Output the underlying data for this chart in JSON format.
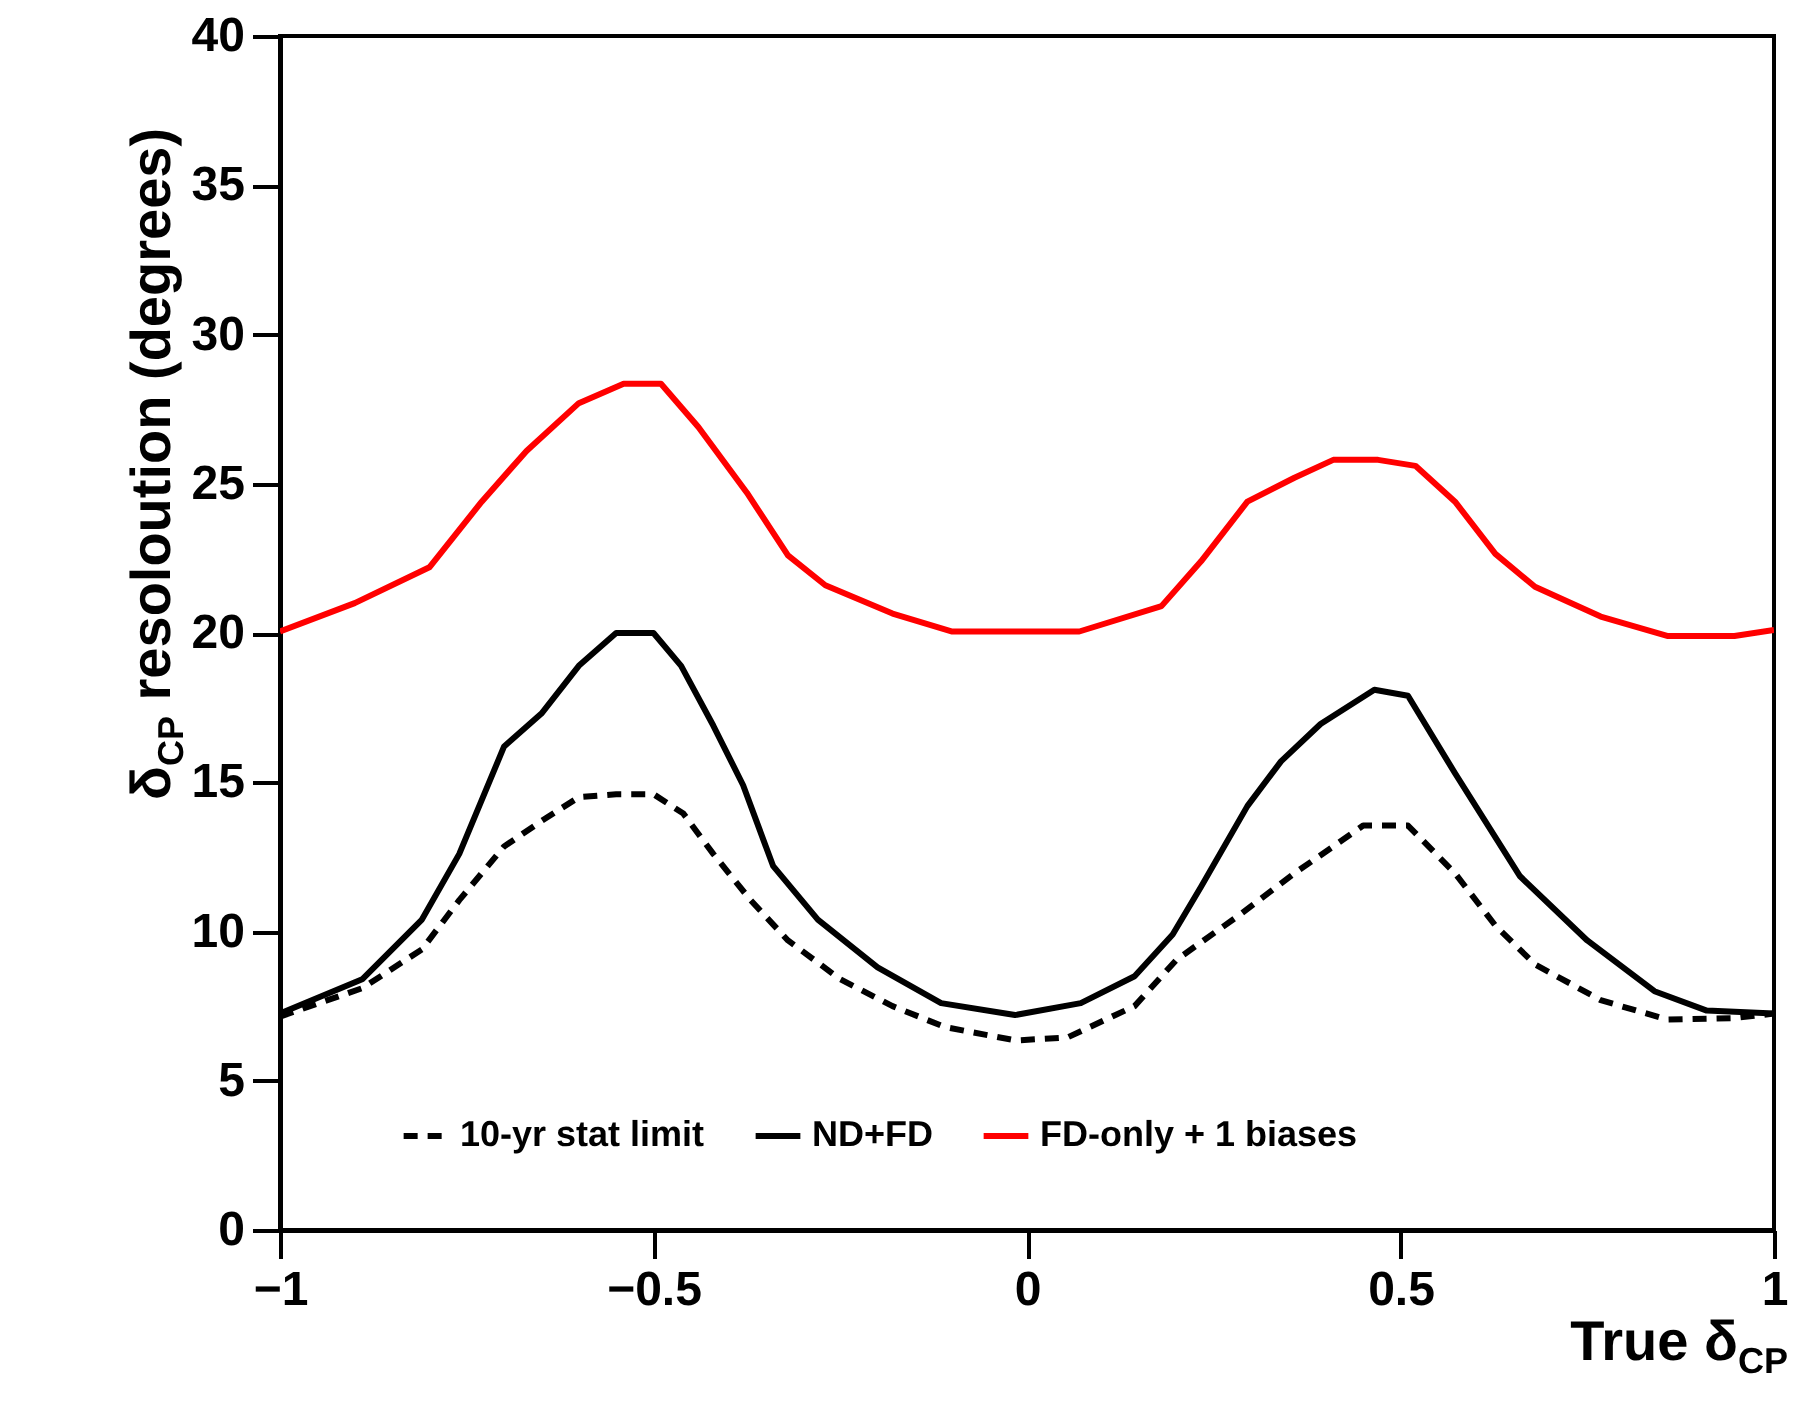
{
  "chart_data": {
    "type": "line",
    "xlabel": "True  δ$_{CP}$",
    "ylabel": "δ$_{CP}$ resoloution (degrees)",
    "xlim": [
      -1,
      1
    ],
    "ylim": [
      0,
      40
    ],
    "xticks": [
      {
        "value": -1,
        "label": "−1"
      },
      {
        "value": -0.5,
        "label": "−0.5"
      },
      0,
      0.5,
      1
    ],
    "yticks": [
      0,
      5,
      10,
      15,
      20,
      25,
      30,
      35,
      40
    ],
    "grid": false,
    "legend": "bottom",
    "marker": "none",
    "series": [
      {
        "name": "10-yr stat limit",
        "color": "#000000",
        "line_style": "dashed",
        "x": [
          -1,
          -0.89,
          -0.81,
          -0.76,
          -0.7,
          -0.65,
          -0.6,
          -0.55,
          -0.5,
          -0.46,
          -0.42,
          -0.37,
          -0.32,
          -0.25,
          -0.18,
          -0.11,
          -0.015,
          0.054,
          0.144,
          0.2,
          0.287,
          0.358,
          0.41,
          0.45,
          0.51,
          0.573,
          0.627,
          0.68,
          0.768,
          0.857,
          0.947,
          1
        ],
        "values": [
          7.15,
          8.1,
          9.4,
          11.05,
          12.85,
          13.7,
          14.5,
          14.6,
          14.6,
          13.95,
          12.6,
          11.05,
          9.7,
          8.4,
          7.5,
          6.8,
          6.35,
          6.45,
          7.5,
          9.05,
          10.6,
          11.95,
          12.85,
          13.55,
          13.55,
          11.95,
          10.2,
          8.9,
          7.7,
          7.05,
          7.1,
          7.25
        ]
      },
      {
        "name": "ND+FD",
        "color": "#000000",
        "line_style": "solid",
        "x": [
          -1,
          -0.89,
          -0.81,
          -0.76,
          -0.7,
          -0.65,
          -0.6,
          -0.55,
          -0.5,
          -0.463,
          -0.42,
          -0.38,
          -0.34,
          -0.28,
          -0.2,
          -0.115,
          -0.016,
          0.072,
          0.144,
          0.195,
          0.233,
          0.295,
          0.34,
          0.393,
          0.465,
          0.51,
          0.573,
          0.66,
          0.75,
          0.84,
          0.91,
          1
        ],
        "values": [
          7.25,
          8.4,
          10.4,
          12.6,
          16.2,
          17.3,
          18.9,
          20,
          20,
          18.9,
          16.9,
          14.9,
          12.2,
          10.4,
          8.8,
          7.6,
          7.2,
          7.6,
          8.5,
          9.9,
          11.5,
          14.2,
          15.7,
          16.95,
          18.1,
          17.9,
          15.3,
          11.85,
          9.7,
          8,
          7.35,
          7.25
        ]
      },
      {
        "name": "FD-only + 1 biases",
        "color": "#ff0000",
        "line_style": "solid",
        "x": [
          -1,
          -0.9,
          -0.8,
          -0.73,
          -0.67,
          -0.6,
          -0.54,
          -0.49,
          -0.44,
          -0.375,
          -0.32,
          -0.27,
          -0.18,
          -0.1,
          -0.035,
          0.07,
          0.18,
          0.233,
          0.295,
          0.358,
          0.41,
          0.47,
          0.52,
          0.573,
          0.627,
          0.68,
          0.768,
          0.857,
          0.947,
          1
        ],
        "values": [
          20.05,
          21,
          22.2,
          24.4,
          26.1,
          27.7,
          28.35,
          28.35,
          26.9,
          24.7,
          22.6,
          21.6,
          20.65,
          20.05,
          20.05,
          20.05,
          20.9,
          22.4,
          24.4,
          25.2,
          25.8,
          25.8,
          25.6,
          24.4,
          22.65,
          21.55,
          20.55,
          19.9,
          19.9,
          20.1
        ]
      }
    ]
  }
}
